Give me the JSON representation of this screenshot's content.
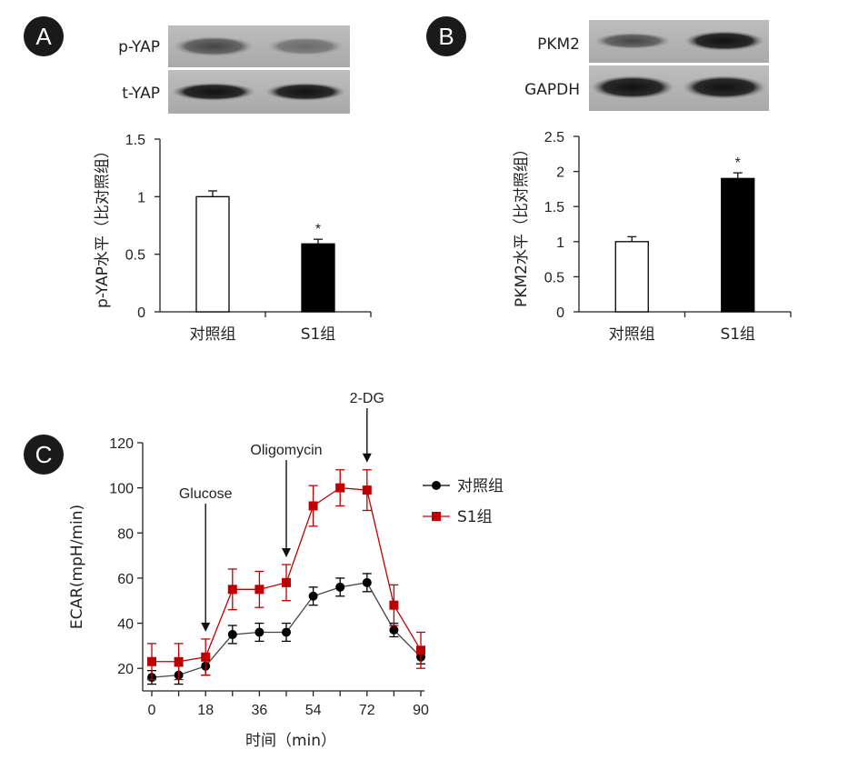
{
  "panels": {
    "A": {
      "badge": "A",
      "blot_labels": [
        "p-YAP",
        "t-YAP"
      ],
      "chart": {
        "type": "bar",
        "ylabel": "p-YAP水平（比对照组）",
        "categories": [
          "对照组",
          "S1组"
        ],
        "values": [
          1.0,
          0.59
        ],
        "errors": [
          0.05,
          0.04
        ],
        "significance": [
          "",
          "*"
        ],
        "bar_colors": [
          "#ffffff",
          "#000000"
        ],
        "ylim": [
          0,
          1.5
        ],
        "yticks": [
          0,
          0.5,
          1,
          1.5
        ],
        "ytick_labels": [
          "0",
          "0.5",
          "1",
          "1.5"
        ]
      }
    },
    "B": {
      "badge": "B",
      "blot_labels": [
        "PKM2",
        "GAPDH"
      ],
      "chart": {
        "type": "bar",
        "ylabel": "PKM2水平（比对照组）",
        "categories": [
          "对照组",
          "S1组"
        ],
        "values": [
          1.0,
          1.9
        ],
        "errors": [
          0.07,
          0.08
        ],
        "significance": [
          "",
          "*"
        ],
        "bar_colors": [
          "#ffffff",
          "#000000"
        ],
        "ylim": [
          0,
          2.5
        ],
        "yticks": [
          0,
          0.5,
          1,
          1.5,
          2,
          2.5
        ],
        "ytick_labels": [
          "0",
          "0.5",
          "1",
          "1.5",
          "2",
          "2.5"
        ]
      }
    },
    "C": {
      "badge": "C",
      "chart": {
        "type": "line",
        "xlabel": "时间（min）",
        "ylabel": "ECAR(mpH/min)",
        "x": [
          0,
          9,
          18,
          27,
          36,
          45,
          54,
          63,
          72,
          81,
          90
        ],
        "xlim": [
          0,
          90
        ],
        "xticks": [
          0,
          18,
          36,
          54,
          72,
          90
        ],
        "ylim": [
          10,
          120
        ],
        "yticks": [
          20,
          40,
          60,
          80,
          100,
          120
        ],
        "series": [
          {
            "name": "对照组",
            "color": "#000000",
            "marker": "circle",
            "values": [
              16,
              17,
              21,
              35,
              36,
              36,
              52,
              56,
              58,
              37,
              25
            ],
            "errors": [
              3,
              4,
              4,
              4,
              4,
              4,
              4,
              4,
              4,
              3,
              3
            ]
          },
          {
            "name": "S1组",
            "color": "#c00000",
            "marker": "square",
            "values": [
              23,
              23,
              25,
              55,
              55,
              58,
              92,
              100,
              99,
              48,
              28
            ],
            "errors": [
              8,
              8,
              8,
              9,
              8,
              8,
              9,
              8,
              9,
              9,
              8
            ]
          }
        ],
        "annotations": [
          {
            "text": "Glucose",
            "x": 18
          },
          {
            "text": "Oligomycin",
            "x": 45
          },
          {
            "text": "2-DG",
            "x": 72
          }
        ],
        "legend_position": "right"
      }
    }
  }
}
